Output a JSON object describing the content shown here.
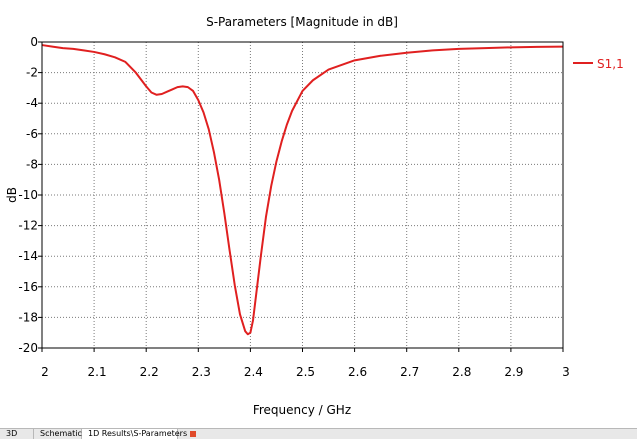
{
  "chart_data": {
    "type": "line",
    "title": "S-Parameters [Magnitude in dB]",
    "xlabel": "Frequency / GHz",
    "ylabel": "dB",
    "xlim": [
      2,
      3
    ],
    "ylim": [
      -20,
      0
    ],
    "x_ticks": [
      "2",
      "2.1",
      "2.2",
      "2.3",
      "2.4",
      "2.5",
      "2.6",
      "2.7",
      "2.8",
      "2.9",
      "3"
    ],
    "y_ticks": [
      "0",
      "-2",
      "-4",
      "-6",
      "-8",
      "-10",
      "-12",
      "-14",
      "-16",
      "-18",
      "-20"
    ],
    "grid": true,
    "legend_position": "right",
    "series": [
      {
        "name": "S1,1",
        "color": "#e02020",
        "x": [
          2.0,
          2.02,
          2.04,
          2.06,
          2.08,
          2.1,
          2.12,
          2.14,
          2.16,
          2.18,
          2.2,
          2.21,
          2.22,
          2.23,
          2.24,
          2.25,
          2.26,
          2.27,
          2.28,
          2.29,
          2.3,
          2.31,
          2.32,
          2.33,
          2.34,
          2.35,
          2.36,
          2.37,
          2.38,
          2.39,
          2.395,
          2.4,
          2.405,
          2.41,
          2.42,
          2.43,
          2.44,
          2.45,
          2.46,
          2.47,
          2.48,
          2.5,
          2.52,
          2.55,
          2.6,
          2.65,
          2.7,
          2.75,
          2.8,
          2.85,
          2.9,
          2.95,
          3.0
        ],
        "y": [
          -0.2,
          -0.3,
          -0.4,
          -0.45,
          -0.55,
          -0.65,
          -0.8,
          -1.0,
          -1.3,
          -2.0,
          -2.9,
          -3.3,
          -3.45,
          -3.4,
          -3.25,
          -3.1,
          -2.95,
          -2.9,
          -2.95,
          -3.2,
          -3.8,
          -4.6,
          -5.7,
          -7.2,
          -9.0,
          -11.2,
          -13.6,
          -15.9,
          -17.8,
          -18.9,
          -19.1,
          -19.0,
          -18.2,
          -16.8,
          -14.0,
          -11.4,
          -9.4,
          -7.8,
          -6.5,
          -5.4,
          -4.5,
          -3.2,
          -2.5,
          -1.8,
          -1.2,
          -0.9,
          -0.7,
          -0.55,
          -0.45,
          -0.4,
          -0.35,
          -0.32,
          -0.3
        ]
      }
    ]
  },
  "tabs": [
    {
      "label": "3D"
    },
    {
      "label": "Schematic"
    },
    {
      "label": "1D Results\\S-Parameters"
    }
  ]
}
